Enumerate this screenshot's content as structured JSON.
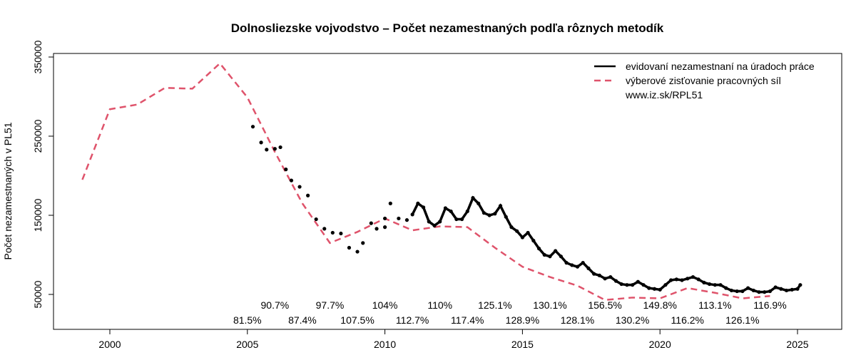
{
  "chart_data": {
    "type": "line",
    "title": "Dolnosliezske vojvodstvo – Počet nezamestnaných  podľa rôznych metodík",
    "xlabel": "",
    "ylabel": "Počet nezamestnaných  v PL51",
    "xlim": [
      1998.0,
      2026.5
    ],
    "ylim": [
      22000,
      352000
    ],
    "xticks": [
      2000,
      2005,
      2010,
      2015,
      2020,
      2025
    ],
    "yticks": [
      50000,
      150000,
      250000,
      350000
    ],
    "grid": false,
    "legend_position": "top-right",
    "legend": [
      "evidovaní nezamestnaní na úradoch práce",
      "výberové zisťovanie pracovných síl",
      "www.iz.sk/RPL51"
    ],
    "colors": {
      "registered": "#000000",
      "lfs": "#DF536B"
    },
    "series": [
      {
        "name": "výberové zisťovanie pracovných síl",
        "style": "dashed",
        "x": [
          1999,
          2000,
          2001,
          2002,
          2003,
          2004,
          2005,
          2006,
          2007,
          2008,
          2009,
          2010,
          2011,
          2012,
          2013,
          2014,
          2015,
          2016,
          2017,
          2018,
          2019,
          2020,
          2021,
          2022,
          2023,
          2024
        ],
        "y": [
          195000,
          284000,
          290000,
          311000,
          310000,
          342000,
          299000,
          230000,
          165000,
          115000,
          129000,
          146000,
          131000,
          136000,
          135000,
          109000,
          85000,
          72000,
          61000,
          43000,
          46000,
          45000,
          58000,
          52000,
          45000,
          48000
        ]
      },
      {
        "name": "evidovaní nezamestnaní na úradoch práce (sporadic)",
        "style": "points",
        "x": [
          2005.2,
          2005.5,
          2005.7,
          2006.0,
          2006.2,
          2006.4,
          2006.6,
          2006.9,
          2007.2,
          2007.5,
          2007.8,
          2008.1,
          2008.4,
          2008.7,
          2009.0,
          2009.2,
          2009.5,
          2009.7,
          2010.0,
          2010.0,
          2010.2,
          2010.5,
          2010.8
        ],
        "y": [
          262000,
          242000,
          233000,
          234000,
          236000,
          208000,
          194000,
          186000,
          175000,
          145000,
          133000,
          128000,
          127000,
          109000,
          104000,
          115000,
          140000,
          133000,
          135000,
          146000,
          165000,
          146000,
          144000
        ]
      },
      {
        "name": "evidovaní nezamestnaní na úradoch práce",
        "style": "solid-dots",
        "x": [
          2011.0,
          2011.2,
          2011.4,
          2011.6,
          2011.8,
          2012.0,
          2012.2,
          2012.4,
          2012.6,
          2012.8,
          2013.0,
          2013.2,
          2013.4,
          2013.6,
          2013.8,
          2014.0,
          2014.2,
          2014.4,
          2014.6,
          2014.8,
          2015.0,
          2015.2,
          2015.4,
          2015.6,
          2015.8,
          2016.0,
          2016.2,
          2016.4,
          2016.6,
          2016.8,
          2017.0,
          2017.2,
          2017.4,
          2017.6,
          2017.8,
          2018.0,
          2018.2,
          2018.4,
          2018.6,
          2018.8,
          2019.0,
          2019.2,
          2019.4,
          2019.6,
          2019.8,
          2020.0,
          2020.2,
          2020.4,
          2020.6,
          2020.8,
          2021.0,
          2021.2,
          2021.4,
          2021.6,
          2021.8,
          2022.0,
          2022.2,
          2022.4,
          2022.6,
          2022.8,
          2023.0,
          2023.2,
          2023.4,
          2023.6,
          2023.8,
          2024.0,
          2024.2,
          2024.4,
          2024.6,
          2024.8,
          2025.0,
          2025.1
        ],
        "y": [
          151000,
          165000,
          160000,
          142000,
          137000,
          142000,
          159000,
          155000,
          145000,
          145000,
          155000,
          172000,
          165000,
          153000,
          150000,
          152000,
          162000,
          148000,
          135000,
          130000,
          122000,
          128000,
          118000,
          108000,
          100000,
          98000,
          105000,
          98000,
          90000,
          87000,
          85000,
          90000,
          83000,
          76000,
          74000,
          70000,
          72000,
          67000,
          63000,
          62000,
          62000,
          66000,
          62000,
          58000,
          57000,
          56000,
          62000,
          68000,
          69000,
          68000,
          70000,
          72000,
          69000,
          65000,
          63000,
          62000,
          62000,
          58000,
          55000,
          54000,
          54000,
          58000,
          55000,
          53000,
          53000,
          54000,
          59000,
          57000,
          55000,
          56000,
          57000,
          62000
        ]
      }
    ],
    "annotations": [
      {
        "year": 2005,
        "label": "81.5%",
        "row": 2
      },
      {
        "year": 2006,
        "label": "90.7%",
        "row": 1
      },
      {
        "year": 2007,
        "label": "87.4%",
        "row": 2
      },
      {
        "year": 2008,
        "label": "97.7%",
        "row": 1
      },
      {
        "year": 2009,
        "label": "107.5%",
        "row": 2
      },
      {
        "year": 2010,
        "label": "104%",
        "row": 1
      },
      {
        "year": 2011,
        "label": "112.7%",
        "row": 2
      },
      {
        "year": 2012,
        "label": "110%",
        "row": 1
      },
      {
        "year": 2013,
        "label": "117.4%",
        "row": 2
      },
      {
        "year": 2014,
        "label": "125.1%",
        "row": 1
      },
      {
        "year": 2015,
        "label": "128.9%",
        "row": 2
      },
      {
        "year": 2016,
        "label": "130.1%",
        "row": 1
      },
      {
        "year": 2017,
        "label": "128.1%",
        "row": 2
      },
      {
        "year": 2018,
        "label": "156.5%",
        "row": 1
      },
      {
        "year": 2019,
        "label": "130.2%",
        "row": 2
      },
      {
        "year": 2020,
        "label": "149.8%",
        "row": 1
      },
      {
        "year": 2021,
        "label": "116.2%",
        "row": 2
      },
      {
        "year": 2022,
        "label": "113.1%",
        "row": 1
      },
      {
        "year": 2023,
        "label": "126.1%",
        "row": 2
      },
      {
        "year": 2024,
        "label": "116.9%",
        "row": 1
      }
    ]
  }
}
